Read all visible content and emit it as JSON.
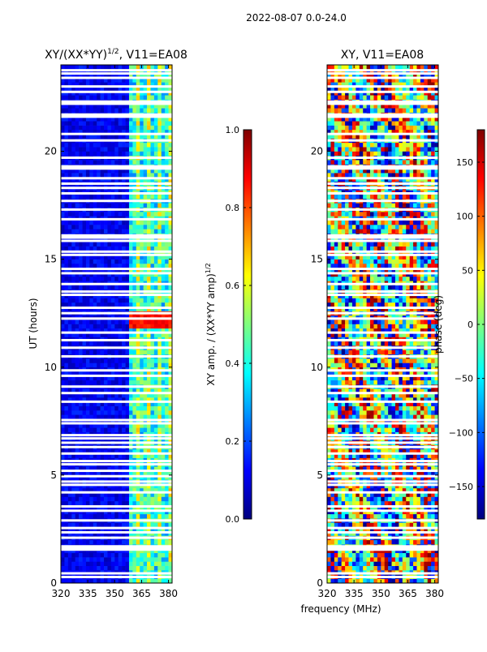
{
  "suptitle": "2022-08-07 0.0-24.0",
  "colors": {
    "jet": [
      "#00007f",
      "#0000ff",
      "#007fff",
      "#00ffff",
      "#7fff7f",
      "#ffff00",
      "#ff7f00",
      "#ff0000",
      "#7f0000"
    ],
    "blank_rows": "#ffffff"
  },
  "chart_data": [
    {
      "type": "heatmap",
      "title_prefix": "XY/(XX*YY)",
      "title_exp": "1/2",
      "title_suffix": ", V11=EA08",
      "xlabel": "",
      "ylabel": "UT (hours)",
      "xlim": [
        320,
        382
      ],
      "ylim": [
        0,
        24
      ],
      "xticks": [
        "320",
        "335",
        "350",
        "365",
        "380"
      ],
      "xtick_values": [
        320,
        335,
        350,
        365,
        380
      ],
      "yticks": [
        "0",
        "5",
        "10",
        "15",
        "20"
      ],
      "ytick_values": [
        0,
        5,
        10,
        15,
        20
      ],
      "colorbar": {
        "label_prefix": "XY amp. / (XX*YY amp)",
        "label_exp": "1/2",
        "range": [
          0.0,
          1.0
        ],
        "ticks": [
          "0.0",
          "0.2",
          "0.4",
          "0.6",
          "0.8",
          "1.0"
        ],
        "tick_values": [
          0.0,
          0.2,
          0.4,
          0.6,
          0.8,
          1.0
        ]
      },
      "description": "low normalized XY amplitude (~0.1) below 358 MHz; elevated amplitude (~0.3-0.6) in 358-382 MHz with vertical striping; peak ~0.9 around 12 UT"
    },
    {
      "type": "heatmap",
      "title": "XY, V11=EA08",
      "xlabel": "frequency (MHz)",
      "ylabel": "",
      "xlim": [
        320,
        382
      ],
      "ylim": [
        0,
        24
      ],
      "xticks": [
        "320",
        "335",
        "350",
        "365",
        "380"
      ],
      "xtick_values": [
        320,
        335,
        350,
        365,
        380
      ],
      "yticks": [
        "0",
        "5",
        "10",
        "15",
        "20"
      ],
      "ytick_values": [
        0,
        5,
        10,
        15,
        20
      ],
      "colorbar": {
        "label": "phase (deg)",
        "range": [
          -180,
          180
        ],
        "ticks": [
          "−150",
          "−100",
          "−50",
          "0",
          "50",
          "100",
          "150"
        ],
        "tick_values": [
          -150,
          -100,
          -50,
          0,
          50,
          100,
          150
        ]
      },
      "description": "noisy phase spanning full -180 to 180 deg range"
    }
  ],
  "blank_times": [
    0.28,
    0.45,
    1.55,
    1.62,
    1.7,
    2.1,
    2.35,
    2.55,
    2.9,
    3.35,
    3.55,
    4.2,
    4.55,
    4.7,
    4.95,
    5.2,
    5.5,
    5.65,
    6.0,
    6.3,
    6.5,
    6.7,
    6.85,
    7.4,
    7.55,
    8.4,
    8.8,
    9.1,
    9.6,
    9.85,
    10.5,
    10.9,
    11.25,
    11.6,
    12.25,
    12.5,
    12.75,
    13.35,
    13.5,
    13.85,
    14.35,
    14.55,
    15.2,
    15.35,
    15.85,
    16.0,
    16.1,
    16.85,
    17.3,
    17.7,
    18.05,
    18.3,
    18.5,
    18.75,
    19.2,
    19.3,
    19.7,
    20.5,
    20.8,
    21.6,
    21.7,
    22.2,
    22.3,
    22.75,
    23.0,
    23.4,
    23.6,
    23.75
  ]
}
